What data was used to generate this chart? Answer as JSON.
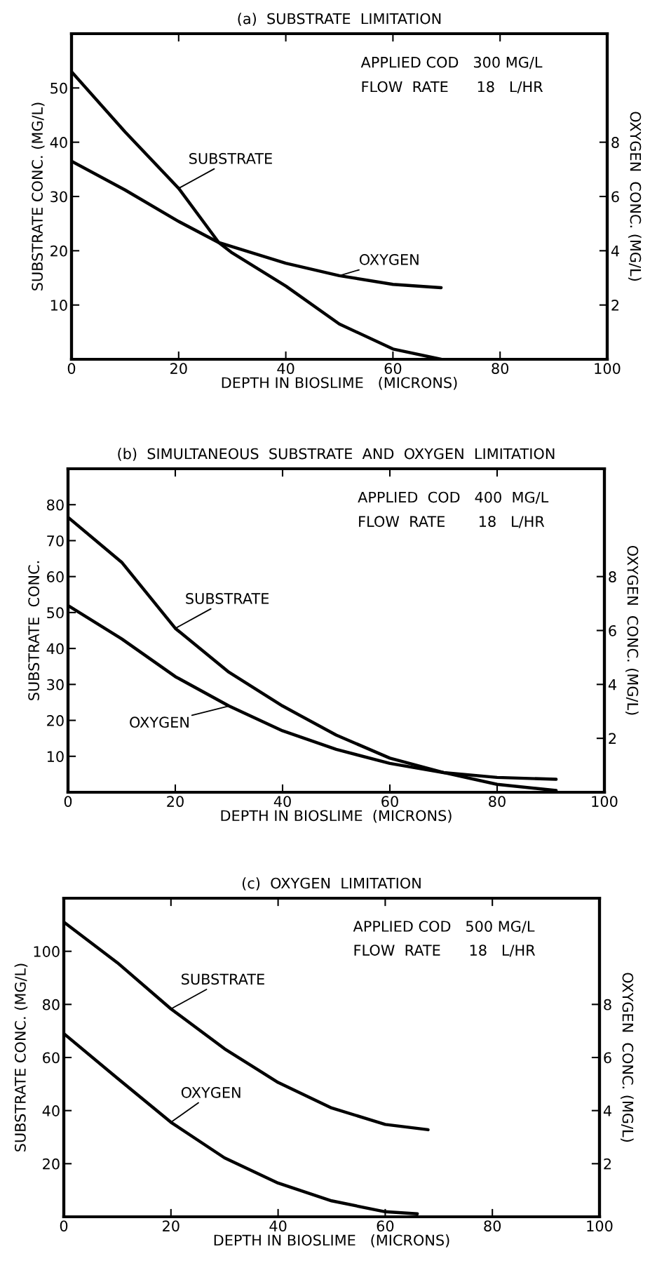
{
  "chart_data": [
    {
      "type": "line",
      "title": "(a)  SUBSTRATE  LIMITATION",
      "xlabel": "DEPTH IN BIOSLIME   (MICRONS)",
      "ylabel": "SUBSTRATE CONC. (MG/L)",
      "y2label": "OXYGEN  CONC. (MG/L)",
      "annotations": [
        "APPLIED COD   300 MG/L",
        "FLOW  RATE      18   L/HR"
      ],
      "xlim": [
        0,
        100
      ],
      "xticks": [
        0,
        20,
        40,
        60,
        80,
        100
      ],
      "ylim": [
        0,
        60
      ],
      "yticks": [
        10,
        20,
        30,
        40,
        50
      ],
      "y2lim": [
        0,
        12
      ],
      "y2ticks": [
        2,
        4,
        6,
        8
      ],
      "grid": false,
      "legend": false,
      "series": [
        {
          "name": "SUBSTRATE",
          "color": "#000000",
          "x": [
            0,
            10,
            20,
            27.5,
            30,
            40,
            50,
            60,
            69
          ],
          "values": [
            53,
            41.9,
            31.5,
            21.5,
            19.6,
            13.5,
            6.5,
            1.9,
            0
          ]
        },
        {
          "name": "OXYGEN",
          "color": "#000000",
          "axis": "y2",
          "x": [
            0,
            10,
            20,
            27.5,
            40,
            50,
            60,
            69
          ],
          "values": [
            7.3,
            6.24,
            5.08,
            4.3,
            3.54,
            3.08,
            2.76,
            2.64
          ]
        }
      ]
    },
    {
      "type": "line",
      "title": "(b)  SIMULTANEOUS  SUBSTRATE  AND  OXYGEN  LIMITATION",
      "xlabel": "DEPTH IN BIOSLIME  (MICRONS)",
      "ylabel": "SUBSTRATE  CONC.",
      "y2label": "OXYGEN  CONC. (MG/L)",
      "annotations": [
        "APPLIED  COD   400  MG/L",
        "FLOW  RATE       18   L/HR"
      ],
      "xlim": [
        0,
        100
      ],
      "xticks": [
        0,
        20,
        40,
        60,
        80,
        100
      ],
      "ylim": [
        0,
        90
      ],
      "yticks": [
        10,
        20,
        30,
        40,
        50,
        60,
        70,
        80
      ],
      "y2lim": [
        0,
        12
      ],
      "y2ticks": [
        2,
        4,
        6,
        8
      ],
      "grid": false,
      "legend": false,
      "series": [
        {
          "name": "SUBSTRATE",
          "color": "#000000",
          "x": [
            0,
            10,
            20,
            30,
            40,
            50,
            60,
            70,
            80,
            91
          ],
          "values": [
            76.5,
            64,
            45.6,
            33.4,
            24,
            15.9,
            9.5,
            5.5,
            2.2,
            0.5
          ]
        },
        {
          "name": "OXYGEN",
          "color": "#000000",
          "axis": "y2",
          "x": [
            0,
            10,
            20,
            30,
            40,
            50,
            60,
            70,
            80,
            91
          ],
          "values": [
            6.93,
            5.69,
            4.29,
            3.2,
            2.28,
            1.59,
            1.07,
            0.73,
            0.55,
            0.48
          ]
        }
      ]
    },
    {
      "type": "line",
      "title": "(c)  OXYGEN  LIMITATION",
      "xlabel": "DEPTH IN BIOSLIME   (MICRONS)",
      "ylabel": "SUBSTRATE CONC. (MG/L)",
      "y2label": "OXYGEN  CONC. (MG/L)",
      "annotations": [
        "APPLIED COD   500 MG/L",
        "FLOW  RATE      18   L/HR"
      ],
      "xlim": [
        0,
        100
      ],
      "xticks": [
        0,
        20,
        40,
        60,
        80,
        100
      ],
      "ylim": [
        0,
        120
      ],
      "yticks": [
        20,
        40,
        60,
        80,
        100
      ],
      "y2lim": [
        0,
        12
      ],
      "y2ticks": [
        2,
        4,
        6,
        8
      ],
      "grid": false,
      "legend": false,
      "series": [
        {
          "name": "SUBSTRATE",
          "color": "#000000",
          "x": [
            0,
            10,
            20,
            30,
            40,
            50,
            60,
            68
          ],
          "values": [
            111,
            95.7,
            78.3,
            63.3,
            50.6,
            41,
            34.8,
            32.8
          ]
        },
        {
          "name": "OXYGEN",
          "color": "#000000",
          "axis": "y2",
          "x": [
            0,
            10,
            20,
            30,
            40,
            50,
            60,
            66
          ],
          "values": [
            6.9,
            5.22,
            3.56,
            2.22,
            1.27,
            0.6,
            0.19,
            0.11
          ]
        }
      ]
    }
  ]
}
